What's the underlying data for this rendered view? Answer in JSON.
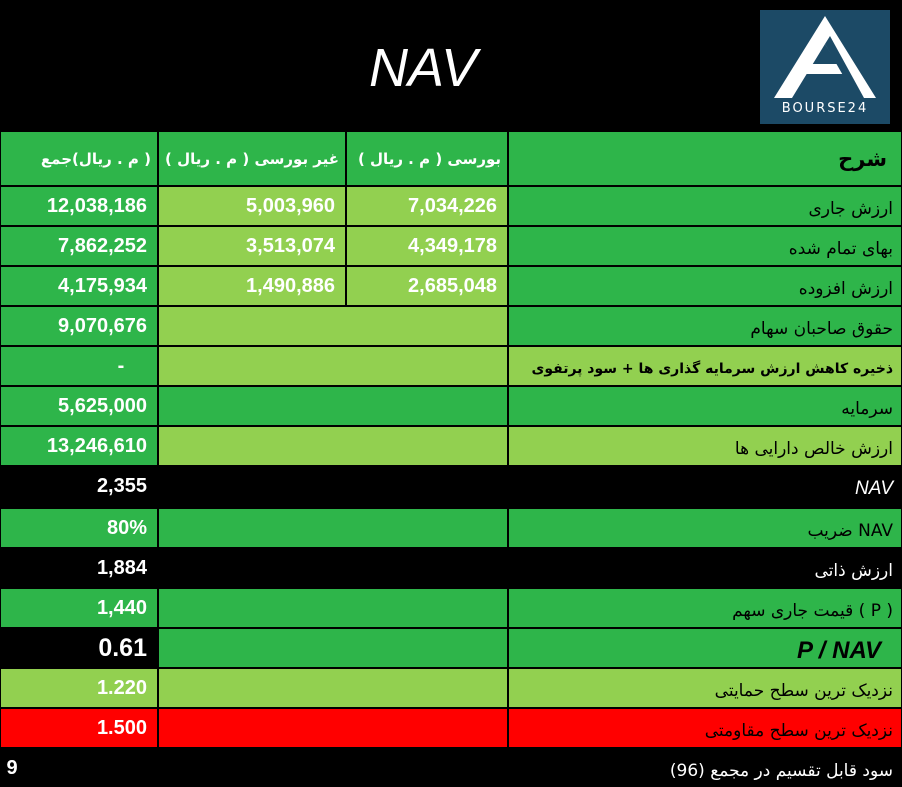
{
  "title": "NAV",
  "logo": {
    "text": "BOURSE24"
  },
  "header": {
    "label": "شرح",
    "col_bourse": "بورسی ( م . ریال )",
    "col_nonbourse": "غیر بورسی ( م . ریال )",
    "col_total": "( م . ریال)جمع"
  },
  "rows": {
    "current_value": {
      "label": "ارزش جاری",
      "bourse": "7,034,226",
      "nonbourse": "5,003,960",
      "total": "12,038,186"
    },
    "cost": {
      "label": "بهای تمام شده",
      "bourse": "4,349,178",
      "nonbourse": "3,513,074",
      "total": "7,862,252"
    },
    "added_value": {
      "label": "ارزش افزوده",
      "bourse": "2,685,048",
      "nonbourse": "1,490,886",
      "total": "4,175,934"
    },
    "equity": {
      "label": "حقوق صاحبان سهام",
      "total": "9,070,676"
    },
    "reserve": {
      "label": "ذخیره کاهش ارزش سرمایه گذاری ها + سود پرتفوی",
      "total": "-"
    },
    "capital": {
      "label": "سرمایه",
      "total": "5,625,000"
    },
    "net_assets": {
      "label": "ارزش خالص دارایی ها",
      "total": "13,246,610"
    },
    "nav": {
      "label": "NAV",
      "total": "2,355"
    },
    "nav_coef": {
      "label": "NAV ضریب",
      "total": "80%"
    },
    "intrinsic": {
      "label": "ارزش ذاتی",
      "total": "1,884"
    },
    "price": {
      "label": "( P ) قیمت جاری سهم",
      "total": "1,440"
    },
    "p_nav": {
      "label": "P / NAV",
      "total": "0.61"
    },
    "support": {
      "label": "نزدیک ترین سطح حمایتی",
      "total": "1.220"
    },
    "resistance": {
      "label": "نزدیک ترین سطح مقاومتی",
      "total": "1.500"
    },
    "dividend": {
      "label": "سود قابل تقسیم در مجمع (96)",
      "total": "9"
    }
  },
  "colors": {
    "green_dark": "#2eb54a",
    "green_light": "#92d050",
    "red": "#ff0000",
    "logo_bg": "#1c4a66"
  }
}
